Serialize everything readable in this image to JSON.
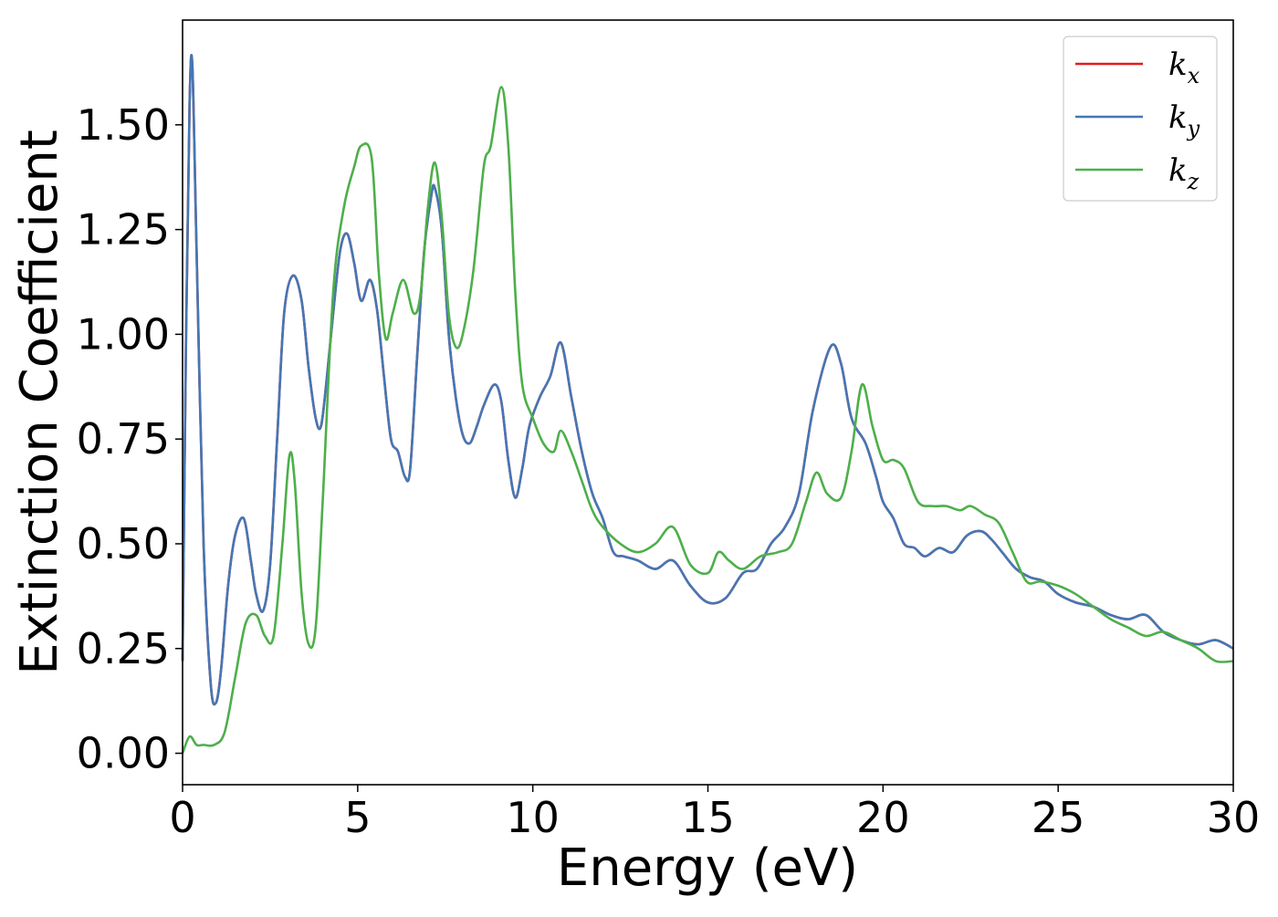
{
  "chart_data": {
    "type": "line",
    "xlabel": "Energy (eV)",
    "ylabel": "Extinction Coefficient",
    "xlim": [
      0,
      30
    ],
    "ylim": [
      -0.075,
      1.75
    ],
    "xticks": [
      0,
      5,
      10,
      15,
      20,
      25,
      30
    ],
    "xtick_labels": [
      "0",
      "5",
      "10",
      "15",
      "20",
      "25",
      "30"
    ],
    "yticks": [
      0.0,
      0.25,
      0.5,
      0.75,
      1.0,
      1.25,
      1.5
    ],
    "ytick_labels": [
      "0.00",
      "0.25",
      "0.50",
      "0.75",
      "1.00",
      "1.25",
      "1.50"
    ],
    "legend_position": "top-right",
    "grid": false,
    "series": [
      {
        "name": "k_x",
        "label_base": "k",
        "label_sub": "x",
        "color": "#e41a1c",
        "x": [
          0,
          0.1,
          0.2,
          0.28,
          0.4,
          0.6,
          0.8,
          0.95,
          1.1,
          1.3,
          1.5,
          1.75,
          1.95,
          2.1,
          2.3,
          2.5,
          2.7,
          2.9,
          3.15,
          3.4,
          3.6,
          3.8,
          3.95,
          4.1,
          4.3,
          4.5,
          4.7,
          4.9,
          5.1,
          5.35,
          5.55,
          5.75,
          5.95,
          6.15,
          6.35,
          6.5,
          6.7,
          6.9,
          7.1,
          7.2,
          7.4,
          7.6,
          7.8,
          8.0,
          8.2,
          8.4,
          8.6,
          8.9,
          9.1,
          9.3,
          9.5,
          9.7,
          9.9,
          10.2,
          10.5,
          10.8,
          11.1,
          11.4,
          11.7,
          12.0,
          12.3,
          12.6,
          13.0,
          13.5,
          14.0,
          14.5,
          15.0,
          15.5,
          16.0,
          16.4,
          16.8,
          17.2,
          17.6,
          18.0,
          18.5,
          18.8,
          19.1,
          19.5,
          19.8,
          20.0,
          20.3,
          20.6,
          20.9,
          21.2,
          21.6,
          22.0,
          22.4,
          22.8,
          23.1,
          23.4,
          23.8,
          24.2,
          24.6,
          25.0,
          25.5,
          26.0,
          26.5,
          27.0,
          27.5,
          28.0,
          28.5,
          29.0,
          29.5,
          30.0
        ],
        "y": [
          0.22,
          1.0,
          1.55,
          1.64,
          1.2,
          0.5,
          0.17,
          0.12,
          0.2,
          0.4,
          0.52,
          0.56,
          0.46,
          0.38,
          0.34,
          0.45,
          0.75,
          1.05,
          1.14,
          1.08,
          0.92,
          0.8,
          0.78,
          0.88,
          1.05,
          1.2,
          1.24,
          1.17,
          1.08,
          1.13,
          1.06,
          0.9,
          0.75,
          0.72,
          0.66,
          0.68,
          0.95,
          1.2,
          1.33,
          1.35,
          1.25,
          1.0,
          0.85,
          0.76,
          0.74,
          0.78,
          0.83,
          0.88,
          0.84,
          0.7,
          0.61,
          0.68,
          0.78,
          0.85,
          0.9,
          0.98,
          0.85,
          0.72,
          0.62,
          0.56,
          0.48,
          0.47,
          0.46,
          0.44,
          0.46,
          0.4,
          0.36,
          0.37,
          0.43,
          0.44,
          0.5,
          0.54,
          0.62,
          0.82,
          0.97,
          0.93,
          0.8,
          0.74,
          0.66,
          0.6,
          0.56,
          0.5,
          0.49,
          0.47,
          0.49,
          0.48,
          0.52,
          0.53,
          0.51,
          0.48,
          0.44,
          0.42,
          0.41,
          0.38,
          0.36,
          0.35,
          0.33,
          0.32,
          0.33,
          0.29,
          0.27,
          0.26,
          0.27,
          0.25
        ]
      },
      {
        "name": "k_y",
        "label_base": "k",
        "label_sub": "y",
        "color": "#4477b5",
        "x": [
          0,
          0.1,
          0.2,
          0.28,
          0.4,
          0.6,
          0.8,
          0.95,
          1.1,
          1.3,
          1.5,
          1.75,
          1.95,
          2.1,
          2.3,
          2.5,
          2.7,
          2.9,
          3.15,
          3.4,
          3.6,
          3.8,
          3.95,
          4.1,
          4.3,
          4.5,
          4.7,
          4.9,
          5.1,
          5.35,
          5.55,
          5.75,
          5.95,
          6.15,
          6.35,
          6.5,
          6.7,
          6.9,
          7.1,
          7.2,
          7.4,
          7.6,
          7.8,
          8.0,
          8.2,
          8.4,
          8.6,
          8.9,
          9.1,
          9.3,
          9.5,
          9.7,
          9.9,
          10.2,
          10.5,
          10.8,
          11.1,
          11.4,
          11.7,
          12.0,
          12.3,
          12.6,
          13.0,
          13.5,
          14.0,
          14.5,
          15.0,
          15.5,
          16.0,
          16.4,
          16.8,
          17.2,
          17.6,
          18.0,
          18.5,
          18.8,
          19.1,
          19.5,
          19.8,
          20.0,
          20.3,
          20.6,
          20.9,
          21.2,
          21.6,
          22.0,
          22.4,
          22.8,
          23.1,
          23.4,
          23.8,
          24.2,
          24.6,
          25.0,
          25.5,
          26.0,
          26.5,
          27.0,
          27.5,
          28.0,
          28.5,
          29.0,
          29.5,
          30.0
        ],
        "y": [
          0.22,
          1.0,
          1.55,
          1.64,
          1.2,
          0.5,
          0.17,
          0.12,
          0.2,
          0.4,
          0.52,
          0.56,
          0.46,
          0.38,
          0.34,
          0.45,
          0.75,
          1.05,
          1.14,
          1.08,
          0.92,
          0.8,
          0.78,
          0.88,
          1.05,
          1.2,
          1.24,
          1.17,
          1.08,
          1.13,
          1.06,
          0.9,
          0.75,
          0.72,
          0.66,
          0.68,
          0.95,
          1.2,
          1.33,
          1.35,
          1.25,
          1.0,
          0.85,
          0.76,
          0.74,
          0.78,
          0.83,
          0.88,
          0.84,
          0.7,
          0.61,
          0.68,
          0.78,
          0.85,
          0.9,
          0.98,
          0.85,
          0.72,
          0.62,
          0.56,
          0.48,
          0.47,
          0.46,
          0.44,
          0.46,
          0.4,
          0.36,
          0.37,
          0.43,
          0.44,
          0.5,
          0.54,
          0.62,
          0.82,
          0.97,
          0.93,
          0.8,
          0.74,
          0.66,
          0.6,
          0.56,
          0.5,
          0.49,
          0.47,
          0.49,
          0.48,
          0.52,
          0.53,
          0.51,
          0.48,
          0.44,
          0.42,
          0.41,
          0.38,
          0.36,
          0.35,
          0.33,
          0.32,
          0.33,
          0.29,
          0.27,
          0.26,
          0.27,
          0.25
        ]
      },
      {
        "name": "k_z",
        "label_base": "k",
        "label_sub": "z",
        "color": "#4daf4a",
        "x": [
          0,
          0.2,
          0.4,
          0.6,
          0.9,
          1.2,
          1.5,
          1.8,
          2.1,
          2.35,
          2.6,
          2.85,
          3.05,
          3.2,
          3.4,
          3.6,
          3.8,
          4.0,
          4.3,
          4.6,
          4.9,
          5.1,
          5.4,
          5.6,
          5.8,
          6.0,
          6.3,
          6.6,
          6.8,
          7.0,
          7.2,
          7.4,
          7.6,
          7.8,
          8.0,
          8.3,
          8.6,
          8.8,
          9.1,
          9.3,
          9.5,
          9.7,
          10.0,
          10.3,
          10.6,
          10.8,
          11.1,
          11.4,
          11.7,
          12.0,
          12.5,
          13.0,
          13.5,
          14.0,
          14.5,
          15.0,
          15.3,
          15.6,
          16.0,
          16.5,
          17.0,
          17.4,
          17.8,
          18.1,
          18.4,
          18.8,
          19.1,
          19.4,
          19.7,
          20.0,
          20.3,
          20.6,
          21.0,
          21.4,
          21.8,
          22.2,
          22.5,
          22.9,
          23.3,
          23.7,
          24.1,
          24.5,
          25.0,
          25.5,
          26.0,
          26.5,
          27.0,
          27.5,
          28.0,
          28.5,
          29.0,
          29.5,
          30.0
        ],
        "y": [
          0.0,
          0.04,
          0.02,
          0.02,
          0.02,
          0.05,
          0.18,
          0.31,
          0.33,
          0.28,
          0.28,
          0.5,
          0.71,
          0.65,
          0.38,
          0.26,
          0.3,
          0.6,
          1.1,
          1.3,
          1.4,
          1.45,
          1.42,
          1.15,
          0.99,
          1.05,
          1.13,
          1.05,
          1.1,
          1.3,
          1.41,
          1.28,
          1.05,
          0.97,
          1.0,
          1.15,
          1.4,
          1.45,
          1.59,
          1.45,
          1.1,
          0.88,
          0.8,
          0.74,
          0.72,
          0.77,
          0.72,
          0.65,
          0.58,
          0.54,
          0.5,
          0.48,
          0.5,
          0.54,
          0.45,
          0.43,
          0.48,
          0.46,
          0.44,
          0.47,
          0.48,
          0.5,
          0.6,
          0.67,
          0.62,
          0.61,
          0.72,
          0.88,
          0.78,
          0.7,
          0.7,
          0.68,
          0.6,
          0.59,
          0.59,
          0.58,
          0.59,
          0.57,
          0.55,
          0.48,
          0.41,
          0.41,
          0.4,
          0.38,
          0.35,
          0.32,
          0.3,
          0.28,
          0.29,
          0.27,
          0.25,
          0.22,
          0.22
        ]
      }
    ]
  }
}
